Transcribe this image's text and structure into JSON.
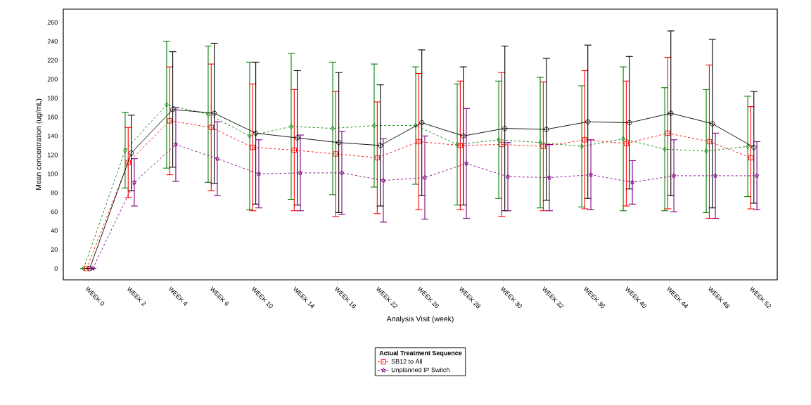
{
  "chart_data": {
    "type": "line",
    "xlabel": "Analysis Visit (week)",
    "ylabel": "Mean concentration (ug/mL)",
    "legend_title": "Actual Treatment Sequence",
    "legend": "bottom",
    "categories": [
      "WEEK 0",
      "WEEK 2",
      "WEEK 4",
      "WEEK 6",
      "WEEK 10",
      "WEEK 14",
      "WEEK 18",
      "WEEK 22",
      "WEEK 26",
      "WEEK 28",
      "WEEK 30",
      "WEEK 32",
      "WEEK 36",
      "WEEK 40",
      "WEEK 44",
      "WEEK 48",
      "WEEK 52"
    ],
    "ylim": [
      -12,
      274
    ],
    "yticks": [
      0,
      20,
      40,
      60,
      80,
      100,
      120,
      140,
      160,
      180,
      200,
      220,
      240,
      260
    ],
    "series": [
      {
        "color": "#008000",
        "marker": "diamond",
        "line_style": "dashed",
        "values": [
          0,
          125,
          173,
          163,
          140,
          150,
          148,
          151,
          151,
          131,
          136,
          133,
          129,
          137,
          126,
          124,
          129
        ],
        "errors": [
          0,
          40,
          67,
          72,
          78,
          77,
          70,
          65,
          62,
          64,
          62,
          69,
          64,
          76,
          65,
          65,
          53
        ]
      },
      {
        "name": "SB12 to All",
        "color": "#ff0000",
        "marker": "square",
        "line_style": "dashed",
        "values": [
          0,
          112,
          156,
          149,
          128,
          125,
          121,
          117,
          134,
          130,
          131,
          129,
          136,
          132,
          143,
          134,
          117
        ],
        "errors": [
          0,
          37,
          57,
          67,
          67,
          64,
          66,
          59,
          72,
          68,
          76,
          68,
          73,
          66,
          80,
          81,
          54
        ]
      },
      {
        "color": "#000000",
        "marker": "circle",
        "line_style": "solid",
        "values": [
          0,
          122,
          168,
          164,
          143,
          138,
          133,
          130,
          154,
          140,
          148,
          147,
          155,
          154,
          164,
          153,
          128
        ],
        "errors": [
          0,
          40,
          61,
          74,
          75,
          71,
          74,
          64,
          77,
          73,
          87,
          75,
          81,
          70,
          87,
          89,
          59
        ]
      },
      {
        "name": "Unplanned IP Switch",
        "color": "#800080",
        "marker": "star",
        "line_style": "dashed",
        "values": [
          0,
          91,
          131,
          116,
          100,
          101,
          101,
          93,
          96,
          111,
          97,
          96,
          99,
          91,
          98,
          98,
          98
        ],
        "errors": [
          0,
          25,
          39,
          39,
          36,
          40,
          44,
          44,
          44,
          58,
          36,
          35,
          37,
          23,
          38,
          45,
          36
        ]
      }
    ]
  }
}
